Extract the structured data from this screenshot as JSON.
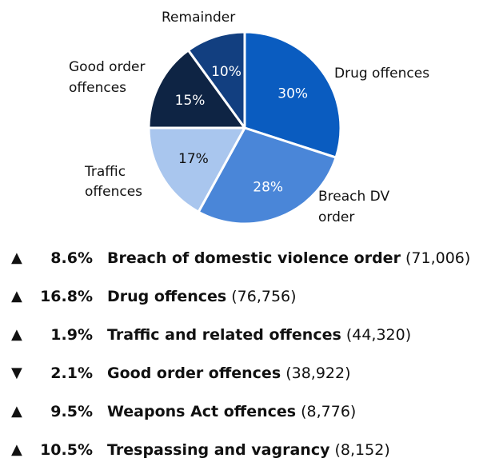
{
  "chart_data": {
    "type": "pie",
    "title": "",
    "slices": [
      {
        "label": "Drug offences",
        "value": 30,
        "value_label": "30%",
        "color": "#0a5cc0"
      },
      {
        "label": "Breach DV order",
        "value": 28,
        "value_label": "28%",
        "color": "#4a86d8"
      },
      {
        "label": "Traffic offences",
        "value": 17,
        "value_label": "17%",
        "color": "#a9c6ee"
      },
      {
        "label": "Good order offences",
        "value": 15,
        "value_label": "15%",
        "color": "#0e2444"
      },
      {
        "label": "Remainder",
        "value": 10,
        "value_label": "10%",
        "color": "#123f80"
      }
    ],
    "label_text_colors": {
      "Drug offences": "#ffffff",
      "Breach DV order": "#ffffff",
      "Traffic offences": "#111111",
      "Good order offences": "#ffffff",
      "Remainder": "#ffffff"
    }
  },
  "changes": [
    {
      "direction": "up",
      "arrow": "▲",
      "pct": "8.6%",
      "name": "Breach of domestic violence order",
      "count": "(71,006)"
    },
    {
      "direction": "up",
      "arrow": "▲",
      "pct": "16.8%",
      "name": "Drug offences",
      "count": "(76,756)"
    },
    {
      "direction": "up",
      "arrow": "▲",
      "pct": "1.9%",
      "name": "Traffic and related offences",
      "count": "(44,320)"
    },
    {
      "direction": "down",
      "arrow": "▼",
      "pct": "2.1%",
      "name": "Good order offences",
      "count": "(38,922)"
    },
    {
      "direction": "up",
      "arrow": "▲",
      "pct": "9.5%",
      "name": "Weapons Act offences",
      "count": "(8,776)"
    },
    {
      "direction": "up",
      "arrow": "▲",
      "pct": "10.5%",
      "name": "Trespassing and vagrancy",
      "count": "(8,152)"
    }
  ]
}
